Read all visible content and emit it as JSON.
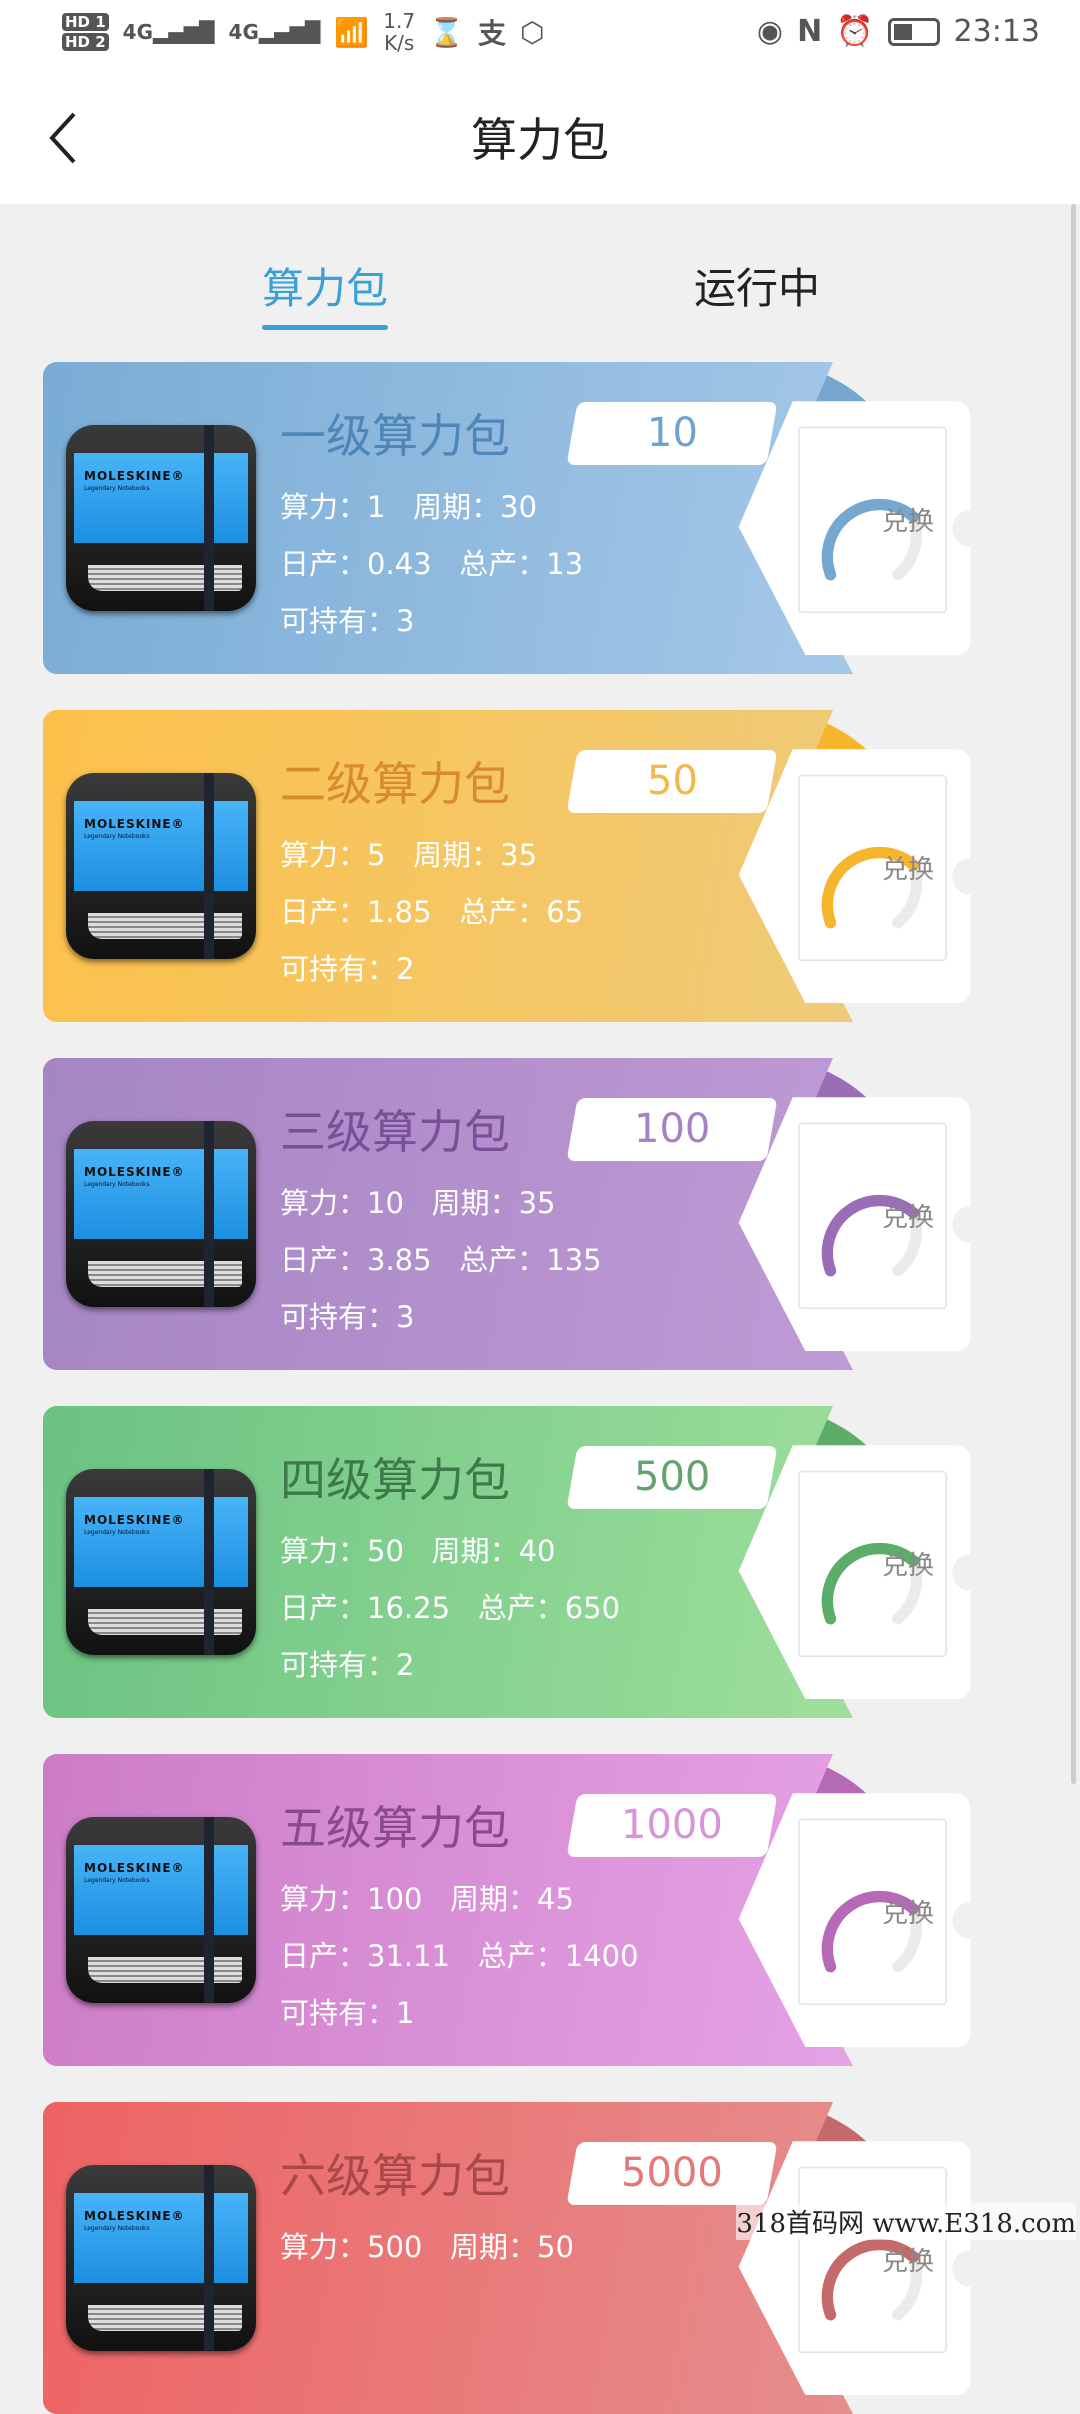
{
  "status_bar": {
    "sim1": "HD 1",
    "sim2": "HD 2",
    "network1": "4G",
    "network2": "4G",
    "speed": "1.7",
    "speed_unit": "K/s",
    "time": "23:13",
    "icons": [
      "signal-icon",
      "wifi-icon",
      "hourglass-icon",
      "alipay-icon",
      "hand-icon",
      "eye-icon",
      "nfc-icon",
      "alarm-icon",
      "battery-icon"
    ]
  },
  "header": {
    "title": "算力包",
    "back_icon": "chevron-left-icon"
  },
  "tabs": [
    {
      "label": "算力包",
      "active": true
    },
    {
      "label": "运行中",
      "active": false
    }
  ],
  "labels": {
    "power": "算力：",
    "period": "周期：",
    "daily": "日产：",
    "total": "总产：",
    "holdable": "可持有：",
    "redeem": "兑换",
    "book_logo": "MOLESKINE®",
    "book_sub": "Legendary Notebooks"
  },
  "packages": [
    {
      "name": "一级算力包",
      "price": "10",
      "power": "1",
      "period": "30",
      "daily": "0.43",
      "total": "13",
      "holdable": "3",
      "colors": {
        "from": "#79acd5",
        "to": "#a8cae9",
        "dark": "#76a8cf",
        "title": "#4f86b8",
        "price": "#6fa3cf"
      }
    },
    {
      "name": "二级算力包",
      "price": "50",
      "power": "5",
      "period": "35",
      "daily": "1.85",
      "total": "65",
      "holdable": "2",
      "colors": {
        "from": "#fcc14a",
        "to": "#eecb7c",
        "dark": "#f5b52c",
        "title": "#d98a2e",
        "price": "#f2b84b"
      }
    },
    {
      "name": "三级算力包",
      "price": "100",
      "power": "10",
      "period": "35",
      "daily": "3.85",
      "total": "135",
      "holdable": "3",
      "colors": {
        "from": "#a585c3",
        "to": "#c19cd7",
        "dark": "#9a6db7",
        "title": "#7a4f98",
        "price": "#a880c5"
      }
    },
    {
      "name": "四级算力包",
      "price": "500",
      "power": "50",
      "period": "40",
      "daily": "16.25",
      "total": "650",
      "holdable": "2",
      "colors": {
        "from": "#6bc282",
        "to": "#a2e19d",
        "dark": "#5dac69",
        "title": "#3d7a4a",
        "price": "#62a36e"
      }
    },
    {
      "name": "五级算力包",
      "price": "1000",
      "power": "100",
      "period": "45",
      "daily": "31.11",
      "total": "1400",
      "holdable": "1",
      "colors": {
        "from": "#cc7cc5",
        "to": "#e7a5e8",
        "dark": "#b569b7",
        "title": "#8a4a8a",
        "price": "#d894d8"
      }
    },
    {
      "name": "六级算力包",
      "price": "5000",
      "power": "500",
      "period": "50",
      "daily": "",
      "total": "",
      "holdable": "",
      "colors": {
        "from": "#ee6363",
        "to": "#e59191",
        "dark": "#c46a6a",
        "title": "#a84848",
        "price": "#e27878"
      }
    }
  ],
  "watermark": "318首码网 www.E318.com"
}
